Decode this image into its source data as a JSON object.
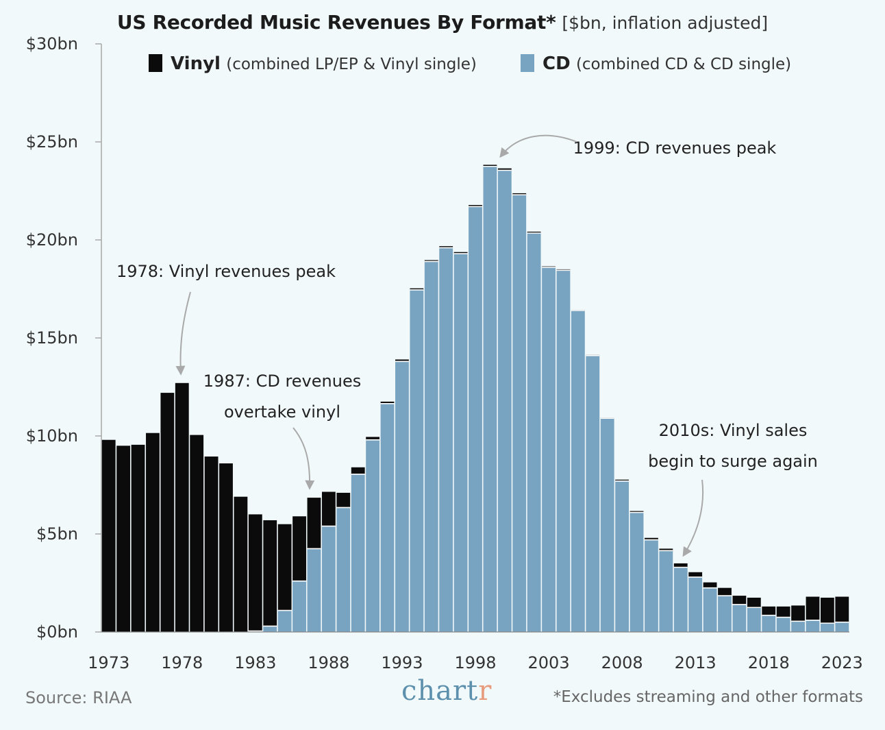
{
  "chart_data": {
    "type": "bar",
    "stacked": true,
    "title": "US Recorded Music Revenues By Format*",
    "subtitle": "[$bn, inflation adjusted]",
    "xlabel": "",
    "ylabel": "",
    "ylim": [
      0,
      30
    ],
    "yticks": [
      0,
      5,
      10,
      15,
      20,
      25,
      30
    ],
    "ytick_labels": [
      "$0bn",
      "$5bn",
      "$10bn",
      "$15bn",
      "$20bn",
      "$25bn",
      "$30bn"
    ],
    "xtick_labels": [
      "1973",
      "1978",
      "1983",
      "1988",
      "1993",
      "1998",
      "2003",
      "2008",
      "2013",
      "2018",
      "2023"
    ],
    "years": [
      1973,
      1974,
      1975,
      1976,
      1977,
      1978,
      1979,
      1980,
      1981,
      1982,
      1983,
      1984,
      1985,
      1986,
      1987,
      1988,
      1989,
      1990,
      1991,
      1992,
      1993,
      1994,
      1995,
      1996,
      1997,
      1998,
      1999,
      2000,
      2001,
      2002,
      2003,
      2004,
      2005,
      2006,
      2007,
      2008,
      2009,
      2010,
      2011,
      2012,
      2013,
      2014,
      2015,
      2016,
      2017,
      2018,
      2019,
      2020,
      2021,
      2022,
      2023
    ],
    "series": [
      {
        "name": "CD",
        "color": "#79a4c1",
        "values": [
          0,
          0,
          0,
          0,
          0,
          0,
          0,
          0,
          0,
          0,
          0.05,
          0.3,
          1.1,
          2.6,
          4.25,
          5.4,
          6.35,
          8.05,
          9.8,
          11.65,
          13.8,
          17.45,
          18.9,
          19.6,
          19.3,
          21.7,
          23.75,
          23.55,
          22.3,
          20.35,
          18.6,
          18.45,
          16.4,
          14.1,
          10.9,
          7.7,
          6.1,
          4.7,
          4.15,
          3.3,
          2.8,
          2.25,
          1.85,
          1.4,
          1.25,
          0.85,
          0.75,
          0.55,
          0.6,
          0.45,
          0.5
        ]
      },
      {
        "name": "Vinyl",
        "color": "#0b0b0b",
        "values": [
          9.8,
          9.5,
          9.55,
          10.15,
          12.2,
          12.7,
          10.05,
          8.95,
          8.6,
          6.9,
          5.95,
          5.4,
          4.4,
          3.3,
          2.6,
          1.75,
          0.75,
          0.35,
          0.15,
          0.1,
          0.1,
          0.08,
          0.07,
          0.08,
          0.08,
          0.08,
          0.08,
          0.1,
          0.08,
          0.07,
          0.05,
          0.05,
          0.03,
          0.03,
          0.03,
          0.07,
          0.07,
          0.1,
          0.1,
          0.2,
          0.25,
          0.28,
          0.4,
          0.45,
          0.5,
          0.45,
          0.55,
          0.8,
          1.2,
          1.3,
          1.3
        ]
      }
    ],
    "legend": [
      {
        "name": "Vinyl",
        "desc": "(combined LP/EP & Vinyl single)",
        "color": "#0b0b0b"
      },
      {
        "name": "CD",
        "desc": "(combined CD & CD single)",
        "color": "#79a4c1"
      }
    ],
    "annotations": [
      {
        "lines": [
          "1978: Vinyl revenues peak"
        ],
        "year": 1978
      },
      {
        "lines": [
          "1987: CD revenues",
          "overtake vinyl"
        ],
        "year": 1987
      },
      {
        "lines": [
          "1999: CD revenues peak"
        ],
        "year": 1999
      },
      {
        "lines": [
          "2010s: Vinyl sales",
          "begin to surge again"
        ],
        "year": 2012
      }
    ]
  },
  "footer": {
    "source": "Source: RIAA",
    "brand_main": "chart",
    "brand_last": "r",
    "footnote": "*Excludes streaming and other formats"
  }
}
